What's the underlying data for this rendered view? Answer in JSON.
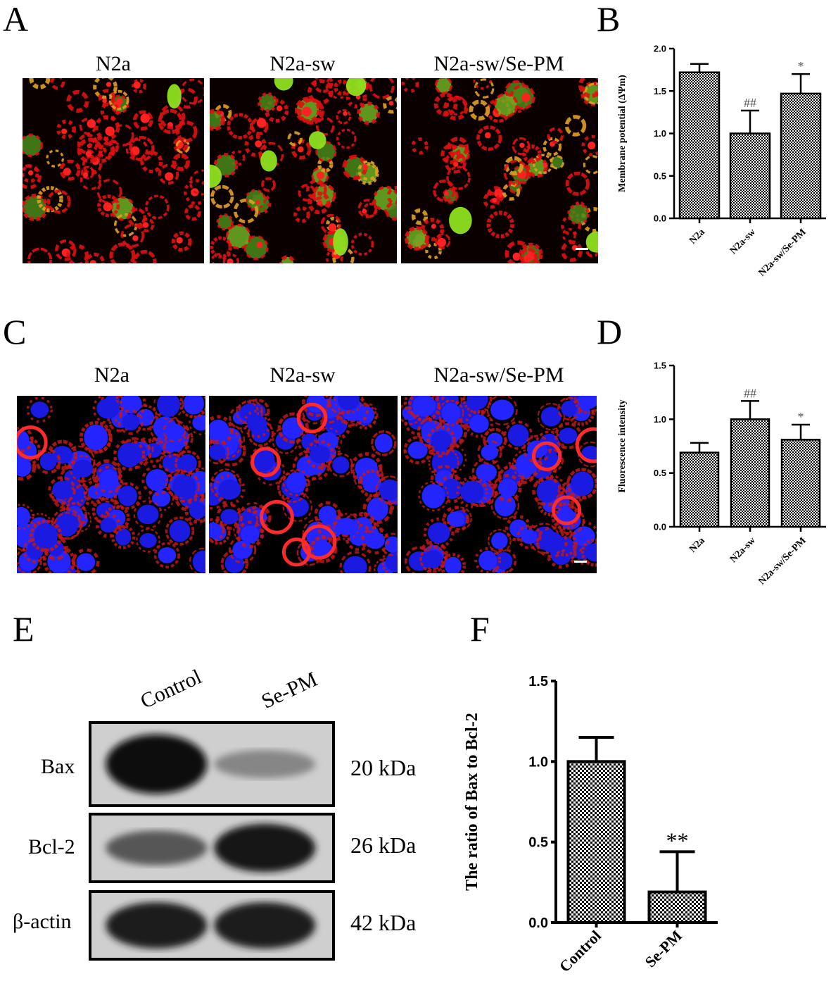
{
  "panels": {
    "A": {
      "letter": "A",
      "images": [
        {
          "title": "N2a",
          "scale_bar": false
        },
        {
          "title": "N2a-sw",
          "scale_bar": false
        },
        {
          "title": "N2a-sw/Se-PM",
          "scale_bar": true
        }
      ]
    },
    "C": {
      "letter": "C",
      "images": [
        {
          "title": "N2a",
          "scale_bar": false
        },
        {
          "title": "N2a-sw",
          "scale_bar": false
        },
        {
          "title": "N2a-sw/Se-PM",
          "scale_bar": true
        }
      ]
    },
    "E": {
      "letter": "E",
      "lanes": [
        "Control",
        "Se-PM"
      ],
      "rows": [
        {
          "label": "Bax",
          "kda": "20 kDa",
          "control_intensity": 1.0,
          "sepm_intensity": 0.35
        },
        {
          "label": "Bcl-2",
          "kda": "26 kDa",
          "control_intensity": 0.6,
          "sepm_intensity": 0.95
        },
        {
          "label": "β-actin",
          "kda": "42 kDa",
          "control_intensity": 0.9,
          "sepm_intensity": 0.9
        }
      ]
    }
  },
  "chart_data": [
    {
      "panel": "B",
      "type": "bar",
      "title": "",
      "categories": [
        "N2a",
        "N2a-sw",
        "N2a-sw/Se-PM"
      ],
      "values": [
        1.72,
        1.0,
        1.47
      ],
      "errors": [
        0.1,
        0.27,
        0.23
      ],
      "annotations": [
        "",
        "##",
        "*"
      ],
      "xlabel": "",
      "ylabel": "Membrane potential (ΔΨm)",
      "ylim": [
        0,
        2.0
      ],
      "yticks": [
        "0.0",
        "0.5",
        "1.0",
        "1.5",
        "2.0"
      ],
      "grid": false,
      "pattern_color": "#000000"
    },
    {
      "panel": "D",
      "type": "bar",
      "title": "",
      "categories": [
        "N2a",
        "N2a-sw",
        "N2a-sw/Se-PM"
      ],
      "values": [
        0.69,
        1.0,
        0.81
      ],
      "errors": [
        0.09,
        0.17,
        0.14
      ],
      "annotations": [
        "",
        "##",
        "*"
      ],
      "xlabel": "",
      "ylabel": "Fluorescence intensity",
      "ylim": [
        0,
        1.5
      ],
      "yticks": [
        "0.0",
        "0.5",
        "1.0",
        "1.5"
      ],
      "grid": false,
      "pattern_color": "#000000"
    },
    {
      "panel": "F",
      "type": "bar",
      "title": "",
      "categories": [
        "Control",
        "Se-PM"
      ],
      "values": [
        1.0,
        0.19
      ],
      "errors": [
        0.15,
        0.25
      ],
      "annotations": [
        "",
        "**"
      ],
      "xlabel": "",
      "ylabel": "The ratio of Bax to Bcl-2",
      "ylim": [
        0,
        1.5
      ],
      "yticks": [
        "0.0",
        "0.5",
        "1.0",
        "1.5"
      ],
      "grid": false,
      "pattern_color": "#000000"
    }
  ]
}
